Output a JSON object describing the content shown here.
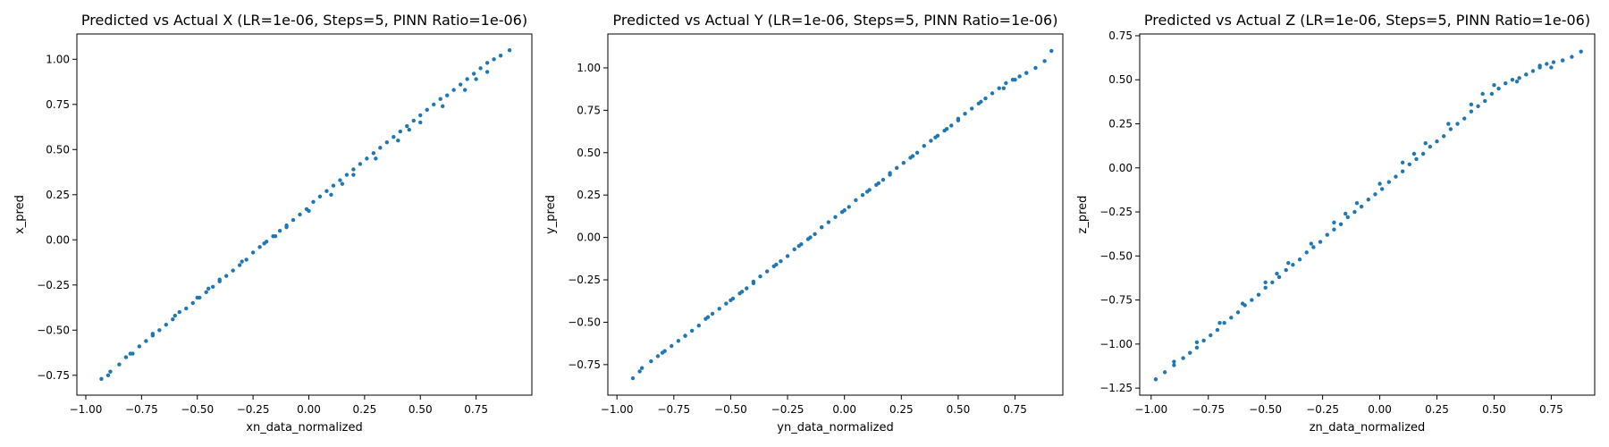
{
  "chart_data": [
    {
      "type": "scatter",
      "title": "Predicted vs Actual X (LR=1e-06, Steps=5, PINN Ratio=1e-06)",
      "xlabel": "xn_data_normalized",
      "ylabel": "x_pred",
      "xlim": [
        -1.04,
        1.0
      ],
      "ylim": [
        -0.86,
        1.14
      ],
      "xticks": [
        "−1.00",
        "−0.75",
        "−0.50",
        "−0.25",
        "0.00",
        "0.25",
        "0.50",
        "0.75"
      ],
      "yticks": [
        "−0.75",
        "−0.50",
        "−0.25",
        "0.00",
        "0.25",
        "0.50",
        "0.75",
        "1.00"
      ],
      "xtick_values": [
        -1.0,
        -0.75,
        -0.5,
        -0.25,
        0.0,
        0.25,
        0.5,
        0.75
      ],
      "ytick_values": [
        -0.75,
        -0.5,
        -0.25,
        0.0,
        0.25,
        0.5,
        0.75,
        1.0
      ],
      "grid": false,
      "color": "#1f77b4",
      "series": [
        {
          "x": [
            -0.93,
            -0.89,
            -0.85,
            -0.82,
            -0.79,
            -0.76,
            -0.73,
            -0.7,
            -0.67,
            -0.64,
            -0.61,
            -0.58,
            -0.55,
            -0.52,
            -0.49,
            -0.46,
            -0.43,
            -0.4,
            -0.37,
            -0.34,
            -0.31,
            -0.28,
            -0.25,
            -0.22,
            -0.19,
            -0.16,
            -0.13,
            -0.1,
            -0.07,
            -0.04,
            -0.01,
            0.02,
            0.05,
            0.08,
            0.11,
            0.14,
            0.17,
            0.2,
            0.23,
            0.26,
            0.29,
            0.32,
            0.35,
            0.38,
            0.41,
            0.44,
            0.47,
            0.5,
            0.53,
            0.56,
            0.59,
            0.62,
            0.65,
            0.68,
            0.71,
            0.74,
            0.77,
            0.8,
            0.83,
            0.86,
            0.9,
            -0.9,
            -0.8,
            -0.7,
            -0.6,
            -0.5,
            -0.4,
            -0.3,
            -0.2,
            -0.1,
            0.0,
            0.1,
            0.2,
            0.3,
            0.4,
            0.5,
            0.6,
            0.7,
            0.8,
            -0.45,
            -0.15,
            0.15,
            0.45,
            0.75
          ],
          "y": [
            -0.77,
            -0.73,
            -0.69,
            -0.65,
            -0.63,
            -0.59,
            -0.56,
            -0.53,
            -0.5,
            -0.47,
            -0.44,
            -0.4,
            -0.38,
            -0.35,
            -0.32,
            -0.29,
            -0.26,
            -0.23,
            -0.2,
            -0.17,
            -0.14,
            -0.11,
            -0.07,
            -0.04,
            -0.01,
            0.02,
            0.05,
            0.08,
            0.11,
            0.14,
            0.17,
            0.21,
            0.24,
            0.27,
            0.3,
            0.33,
            0.36,
            0.39,
            0.42,
            0.45,
            0.48,
            0.51,
            0.54,
            0.57,
            0.6,
            0.63,
            0.66,
            0.69,
            0.72,
            0.75,
            0.78,
            0.8,
            0.83,
            0.86,
            0.89,
            0.92,
            0.95,
            0.98,
            1.0,
            1.02,
            1.05,
            -0.75,
            -0.63,
            -0.52,
            -0.42,
            -0.32,
            -0.22,
            -0.12,
            -0.02,
            0.07,
            0.16,
            0.25,
            0.36,
            0.45,
            0.55,
            0.65,
            0.74,
            0.83,
            0.93,
            -0.27,
            0.02,
            0.31,
            0.61,
            0.89
          ]
        }
      ]
    },
    {
      "type": "scatter",
      "title": "Predicted vs Actual Y (LR=1e-06, Steps=5, PINN Ratio=1e-06)",
      "xlabel": "yn_data_normalized",
      "ylabel": "y_pred",
      "xlim": [
        -1.04,
        0.96
      ],
      "ylim": [
        -0.93,
        1.2
      ],
      "xticks": [
        "−1.00",
        "−0.75",
        "−0.50",
        "−0.25",
        "0.00",
        "0.25",
        "0.50",
        "0.75"
      ],
      "yticks": [
        "−0.75",
        "−0.50",
        "−0.25",
        "0.00",
        "0.25",
        "0.50",
        "0.75",
        "1.00"
      ],
      "xtick_values": [
        -1.0,
        -0.75,
        -0.5,
        -0.25,
        0.0,
        0.25,
        0.5,
        0.75
      ],
      "ytick_values": [
        -0.75,
        -0.5,
        -0.25,
        0.0,
        0.25,
        0.5,
        0.75,
        1.0
      ],
      "grid": false,
      "color": "#1f77b4",
      "series": [
        {
          "x": [
            -0.93,
            -0.89,
            -0.85,
            -0.82,
            -0.79,
            -0.76,
            -0.73,
            -0.7,
            -0.67,
            -0.64,
            -0.61,
            -0.58,
            -0.55,
            -0.52,
            -0.49,
            -0.46,
            -0.43,
            -0.4,
            -0.37,
            -0.34,
            -0.31,
            -0.28,
            -0.25,
            -0.22,
            -0.19,
            -0.16,
            -0.13,
            -0.1,
            -0.07,
            -0.04,
            -0.01,
            0.02,
            0.05,
            0.08,
            0.11,
            0.14,
            0.17,
            0.2,
            0.23,
            0.26,
            0.29,
            0.32,
            0.35,
            0.38,
            0.41,
            0.44,
            0.47,
            0.5,
            0.53,
            0.56,
            0.59,
            0.62,
            0.65,
            0.68,
            0.71,
            0.74,
            0.77,
            0.8,
            0.84,
            0.88,
            0.91,
            -0.9,
            -0.8,
            -0.7,
            -0.6,
            -0.5,
            -0.4,
            -0.3,
            -0.2,
            -0.1,
            0.0,
            0.1,
            0.2,
            0.3,
            0.4,
            0.5,
            0.6,
            0.7,
            0.8,
            -0.45,
            -0.15,
            0.15,
            0.45,
            0.75
          ],
          "y": [
            -0.83,
            -0.77,
            -0.73,
            -0.7,
            -0.67,
            -0.64,
            -0.61,
            -0.58,
            -0.55,
            -0.52,
            -0.48,
            -0.45,
            -0.42,
            -0.39,
            -0.36,
            -0.33,
            -0.3,
            -0.27,
            -0.23,
            -0.2,
            -0.17,
            -0.14,
            -0.11,
            -0.07,
            -0.04,
            -0.01,
            0.02,
            0.06,
            0.09,
            0.12,
            0.15,
            0.18,
            0.22,
            0.25,
            0.28,
            0.31,
            0.34,
            0.38,
            0.41,
            0.44,
            0.47,
            0.5,
            0.54,
            0.57,
            0.6,
            0.63,
            0.66,
            0.7,
            0.73,
            0.76,
            0.79,
            0.82,
            0.85,
            0.88,
            0.91,
            0.93,
            0.95,
            0.97,
            1.0,
            1.04,
            1.1,
            -0.79,
            -0.68,
            -0.58,
            -0.47,
            -0.37,
            -0.26,
            -0.16,
            -0.05,
            0.06,
            0.16,
            0.27,
            0.37,
            0.48,
            0.59,
            0.69,
            0.8,
            0.88,
            0.97,
            -0.32,
            0.0,
            0.32,
            0.64,
            0.93
          ]
        }
      ]
    },
    {
      "type": "scatter",
      "title": "Predicted vs Actual Z (LR=1e-06, Steps=5, PINN Ratio=1e-06)",
      "xlabel": "zn_data_normalized",
      "ylabel": "z_pred",
      "xlim": [
        -1.05,
        0.94
      ],
      "ylim": [
        -1.29,
        0.76
      ],
      "xticks": [
        "−1.00",
        "−0.75",
        "−0.50",
        "−0.25",
        "0.00",
        "0.25",
        "0.50",
        "0.75"
      ],
      "yticks": [
        "−1.25",
        "−1.00",
        "−0.75",
        "−0.50",
        "−0.25",
        "0.00",
        "0.25",
        "0.50",
        "0.75"
      ],
      "xtick_values": [
        -1.0,
        -0.75,
        -0.5,
        -0.25,
        0.0,
        0.25,
        0.5,
        0.75
      ],
      "ytick_values": [
        -1.25,
        -1.0,
        -0.75,
        -0.5,
        -0.25,
        0.0,
        0.25,
        0.5,
        0.75
      ],
      "grid": false,
      "color": "#1f77b4",
      "series": [
        {
          "x": [
            -0.98,
            -0.94,
            -0.9,
            -0.86,
            -0.83,
            -0.8,
            -0.77,
            -0.74,
            -0.71,
            -0.68,
            -0.65,
            -0.62,
            -0.59,
            -0.56,
            -0.53,
            -0.5,
            -0.47,
            -0.44,
            -0.41,
            -0.38,
            -0.35,
            -0.32,
            -0.29,
            -0.26,
            -0.23,
            -0.2,
            -0.17,
            -0.14,
            -0.11,
            -0.08,
            -0.05,
            -0.02,
            0.01,
            0.04,
            0.07,
            0.1,
            0.13,
            0.16,
            0.19,
            0.22,
            0.25,
            0.28,
            0.31,
            0.34,
            0.37,
            0.4,
            0.43,
            0.46,
            0.49,
            0.52,
            0.55,
            0.58,
            0.61,
            0.64,
            0.67,
            0.7,
            0.73,
            0.76,
            0.8,
            0.84,
            0.88,
            -0.9,
            -0.8,
            -0.7,
            -0.6,
            -0.5,
            -0.4,
            -0.3,
            -0.2,
            -0.1,
            0.0,
            0.1,
            0.2,
            0.3,
            0.4,
            0.5,
            0.6,
            0.7,
            0.8,
            -0.45,
            -0.15,
            0.15,
            0.45,
            0.75
          ],
          "y": [
            -1.2,
            -1.16,
            -1.12,
            -1.08,
            -1.05,
            -1.02,
            -0.98,
            -0.95,
            -0.92,
            -0.88,
            -0.85,
            -0.82,
            -0.78,
            -0.75,
            -0.72,
            -0.68,
            -0.65,
            -0.62,
            -0.58,
            -0.55,
            -0.52,
            -0.48,
            -0.45,
            -0.42,
            -0.38,
            -0.35,
            -0.32,
            -0.28,
            -0.25,
            -0.22,
            -0.18,
            -0.15,
            -0.12,
            -0.08,
            -0.05,
            -0.02,
            0.02,
            0.05,
            0.08,
            0.12,
            0.15,
            0.18,
            0.22,
            0.25,
            0.28,
            0.32,
            0.35,
            0.38,
            0.42,
            0.45,
            0.48,
            0.5,
            0.51,
            0.53,
            0.55,
            0.57,
            0.59,
            0.6,
            0.61,
            0.63,
            0.66,
            -1.1,
            -0.99,
            -0.88,
            -0.77,
            -0.65,
            -0.54,
            -0.43,
            -0.31,
            -0.2,
            -0.09,
            0.03,
            0.14,
            0.25,
            0.36,
            0.47,
            0.49,
            0.58,
            0.61,
            -0.6,
            -0.26,
            0.08,
            0.42,
            0.57
          ]
        }
      ]
    }
  ]
}
